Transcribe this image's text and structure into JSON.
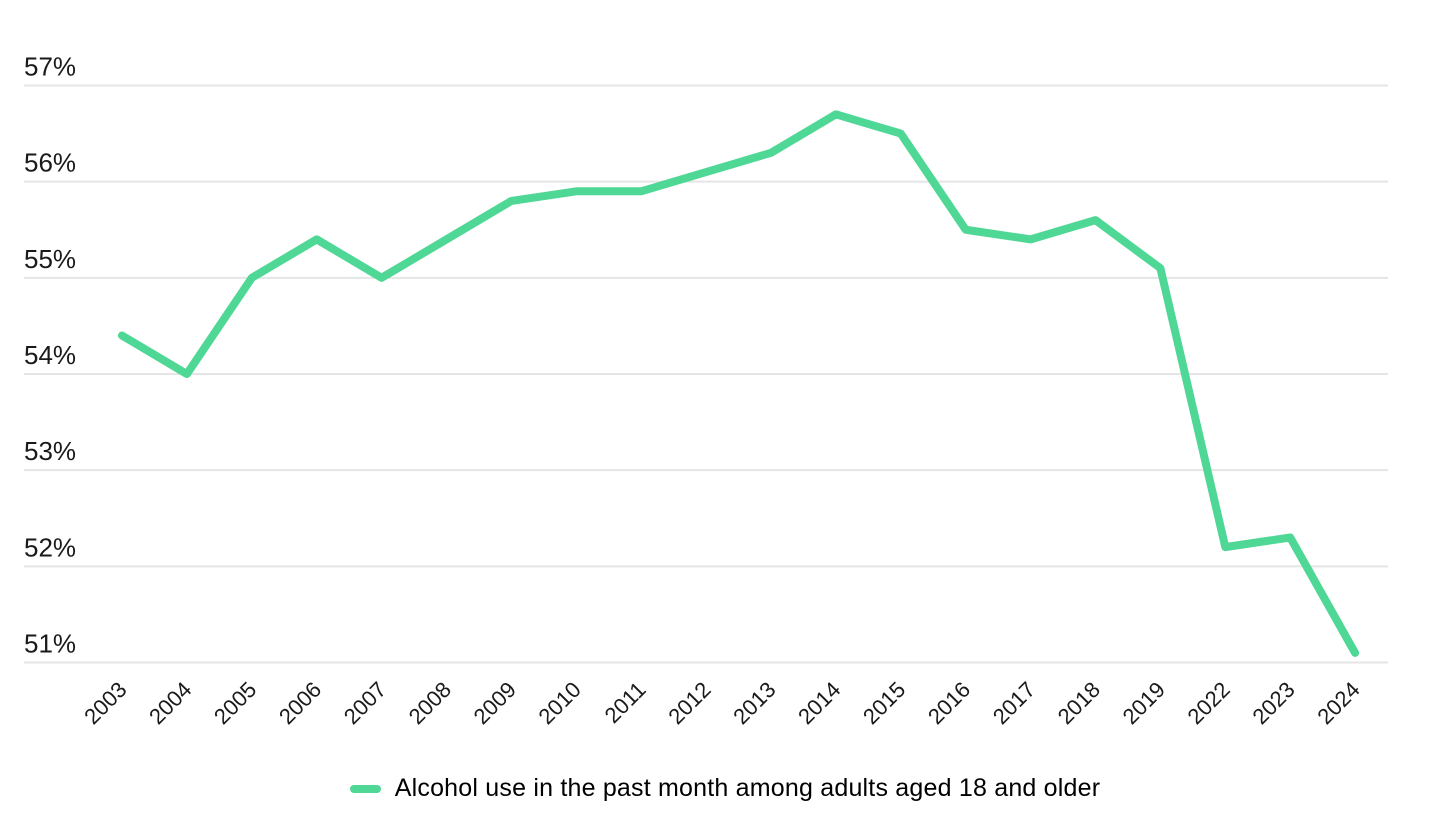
{
  "chart_data": {
    "type": "line",
    "title": "",
    "xlabel": "",
    "ylabel": "",
    "legend": "Alcohol use in the past month among adults aged 18 and older",
    "legend_position": "bottom-center",
    "grid": "horizontal",
    "categories": [
      "2003",
      "2004",
      "2005",
      "2006",
      "2007",
      "2008",
      "2009",
      "2010",
      "2011",
      "2012",
      "2013",
      "2014",
      "2015",
      "2016",
      "2017",
      "2018",
      "2019",
      "2022",
      "2023",
      "2024"
    ],
    "series": [
      {
        "name": "Alcohol use in the past month among adults aged 18 and older",
        "values": [
          54.4,
          54.0,
          55.0,
          55.4,
          55.0,
          55.4,
          55.8,
          55.9,
          55.9,
          56.1,
          56.3,
          56.7,
          56.5,
          55.5,
          55.4,
          55.6,
          55.1,
          52.2,
          52.3,
          51.1
        ]
      }
    ],
    "ylim": [
      51,
      57
    ],
    "ytick_labels": [
      "51%",
      "52%",
      "53%",
      "54%",
      "55%",
      "56%",
      "57%"
    ],
    "ytick_values": [
      51,
      52,
      53,
      54,
      55,
      56,
      57
    ],
    "colors": {
      "line": "#4ed795",
      "gridline": "#e5e5e5",
      "text": "#1a1a1a",
      "background": "#ffffff"
    }
  }
}
